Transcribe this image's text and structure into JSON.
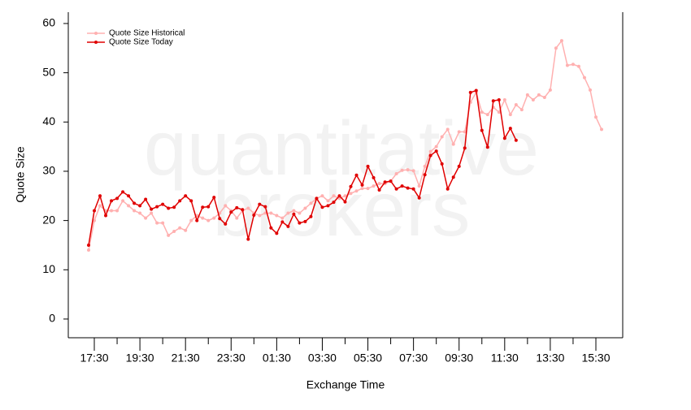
{
  "chart_data": {
    "type": "line",
    "watermark": [
      "quantitative",
      "brokers"
    ],
    "x_label": "Exchange Time",
    "y_label": "Quote Size",
    "categories": [
      null,
      "17:30",
      null,
      null,
      null,
      null,
      null,
      null,
      null,
      "19:30",
      null,
      null,
      null,
      null,
      null,
      null,
      null,
      "21:30",
      null,
      null,
      null,
      null,
      null,
      null,
      null,
      "23:30",
      null,
      null,
      null,
      null,
      null,
      null,
      null,
      "01:30",
      null,
      null,
      null,
      null,
      null,
      null,
      null,
      "03:30",
      null,
      null,
      null,
      null,
      null,
      null,
      null,
      "05:30",
      null,
      null,
      null,
      null,
      null,
      null,
      null,
      "07:30",
      null,
      null,
      null,
      null,
      null,
      null,
      null,
      "09:30",
      null,
      null,
      null,
      null,
      null,
      null,
      null,
      "11:30",
      null,
      null,
      null,
      null,
      null,
      null,
      null,
      "13:30",
      null,
      null,
      null,
      null,
      null,
      null,
      null,
      "15:30",
      null
    ],
    "series": [
      {
        "name": "Quote Size Historical",
        "color": "#ffb0b0",
        "values": [
          14,
          20,
          23,
          22,
          22,
          22,
          24,
          23,
          22,
          21.5,
          20.5,
          21.5,
          19.5,
          19.5,
          17,
          17.8,
          18.5,
          18,
          20,
          21,
          20.5,
          20,
          20.5,
          21.5,
          23,
          22,
          20.5,
          22,
          22.5,
          21.5,
          21,
          21.5,
          21.5,
          21,
          20.5,
          21.5,
          22,
          21.5,
          22.5,
          23.5,
          24.5,
          25,
          24,
          25,
          24.5,
          25,
          25.5,
          26,
          26.5,
          26.5,
          27,
          27.5,
          27.5,
          28,
          29.5,
          30.2,
          30.3,
          30.1,
          27,
          31,
          34,
          35,
          37,
          38.5,
          35.5,
          38,
          38,
          44,
          46,
          42,
          41.5,
          43,
          42,
          44.5,
          41.5,
          43.5,
          42.5,
          45.5,
          44.5,
          45.5,
          45,
          46.5,
          55,
          56.5,
          51.5,
          51.7,
          51.3,
          49,
          46.5,
          41,
          38.5
        ]
      },
      {
        "name": "Quote Size Today",
        "color": "#e00000",
        "values": [
          15,
          22,
          25,
          21,
          24,
          24.5,
          25.8,
          25,
          23.5,
          23,
          24.3,
          22.3,
          22.8,
          23.3,
          22.5,
          22.7,
          24,
          25,
          24,
          20,
          22.7,
          22.8,
          24.7,
          20.4,
          19.3,
          21.7,
          22.6,
          22.2,
          16.2,
          21.1,
          23.3,
          22.8,
          18.5,
          17.4,
          19.7,
          18.8,
          21.3,
          19.5,
          19.8,
          20.8,
          24.5,
          22.7,
          23,
          23.7,
          25,
          23.8,
          26.9,
          29.2,
          27.2,
          31,
          28.7,
          26.2,
          27.8,
          28,
          26.4,
          27,
          26.6,
          26.4,
          24.6,
          29.3,
          33.2,
          34.1,
          31.5,
          26.4,
          28.8,
          31,
          34.7,
          46,
          46.4,
          38.3,
          34.9,
          44.3,
          44.5,
          36.7,
          38.7,
          36.3,
          null,
          null,
          null,
          null,
          null,
          null,
          null,
          null,
          null,
          null,
          null,
          null,
          null,
          null,
          null
        ]
      }
    ],
    "ylim": [
      -3.8,
      62.3
    ],
    "yticks": [
      0,
      10,
      20,
      30,
      40,
      50,
      60
    ],
    "legend": "top-left"
  }
}
